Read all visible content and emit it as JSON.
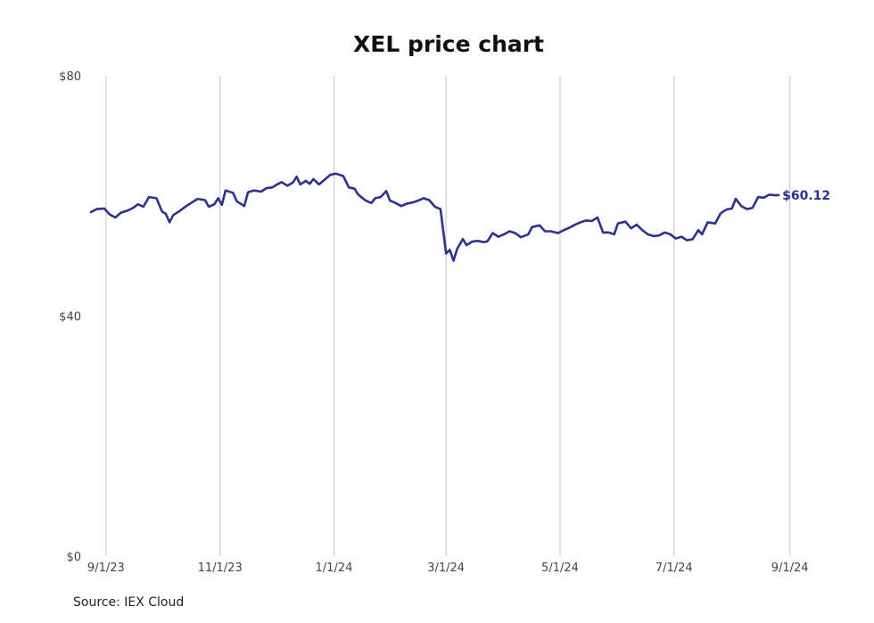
{
  "chart_data": {
    "type": "line",
    "title": "XEL price chart",
    "xlabel": "",
    "ylabel": "",
    "ylim": [
      0,
      80
    ],
    "y_ticks": [
      {
        "value": 0,
        "label": "$0"
      },
      {
        "value": 40,
        "label": "$40"
      },
      {
        "value": 80,
        "label": "$80"
      }
    ],
    "x_ticks": [
      {
        "date": "2023-09-01",
        "label": "9/1/23"
      },
      {
        "date": "2023-11-01",
        "label": "11/1/23"
      },
      {
        "date": "2024-01-01",
        "label": "1/1/24"
      },
      {
        "date": "2024-03-01",
        "label": "3/1/24"
      },
      {
        "date": "2024-05-01",
        "label": "5/1/24"
      },
      {
        "date": "2024-07-01",
        "label": "7/1/24"
      },
      {
        "date": "2024-09-01",
        "label": "9/1/24"
      }
    ],
    "xlim": [
      "2023-08-23",
      "2024-09-15"
    ],
    "grid": "vertical",
    "legend": "none",
    "line_color": "#2e3192",
    "series": [
      {
        "values": [
          [
            "2023-08-24",
            57.3
          ],
          [
            "2023-08-27",
            57.8
          ],
          [
            "2023-08-31",
            57.9
          ],
          [
            "2023-09-03",
            56.9
          ],
          [
            "2023-09-06",
            56.4
          ],
          [
            "2023-09-09",
            57.2
          ],
          [
            "2023-09-13",
            57.6
          ],
          [
            "2023-09-16",
            58.1
          ],
          [
            "2023-09-18",
            58.6
          ],
          [
            "2023-09-21",
            58.2
          ],
          [
            "2023-09-24",
            59.8
          ],
          [
            "2023-09-28",
            59.6
          ],
          [
            "2023-10-01",
            57.4
          ],
          [
            "2023-10-03",
            57.0
          ],
          [
            "2023-10-05",
            55.6
          ],
          [
            "2023-10-07",
            56.8
          ],
          [
            "2023-10-10",
            57.4
          ],
          [
            "2023-10-14",
            58.3
          ],
          [
            "2023-10-17",
            58.9
          ],
          [
            "2023-10-20",
            59.5
          ],
          [
            "2023-10-24",
            59.3
          ],
          [
            "2023-10-26",
            58.2
          ],
          [
            "2023-10-29",
            58.6
          ],
          [
            "2023-10-31",
            59.6
          ],
          [
            "2023-11-02",
            58.5
          ],
          [
            "2023-11-04",
            60.9
          ],
          [
            "2023-11-08",
            60.5
          ],
          [
            "2023-11-10",
            59.1
          ],
          [
            "2023-11-14",
            58.3
          ],
          [
            "2023-11-16",
            60.6
          ],
          [
            "2023-11-19",
            60.9
          ],
          [
            "2023-11-23",
            60.7
          ],
          [
            "2023-11-26",
            61.3
          ],
          [
            "2023-11-29",
            61.4
          ],
          [
            "2023-12-01",
            61.8
          ],
          [
            "2023-12-04",
            62.3
          ],
          [
            "2023-12-07",
            61.7
          ],
          [
            "2023-12-10",
            62.2
          ],
          [
            "2023-12-12",
            63.2
          ],
          [
            "2023-12-14",
            61.9
          ],
          [
            "2023-12-17",
            62.5
          ],
          [
            "2023-12-19",
            62.0
          ],
          [
            "2023-12-21",
            62.8
          ],
          [
            "2023-12-24",
            61.9
          ],
          [
            "2023-12-27",
            62.7
          ],
          [
            "2023-12-30",
            63.5
          ],
          [
            "2024-01-02",
            63.7
          ],
          [
            "2024-01-06",
            63.3
          ],
          [
            "2024-01-09",
            61.4
          ],
          [
            "2024-01-12",
            61.2
          ],
          [
            "2024-01-14",
            60.2
          ],
          [
            "2024-01-18",
            59.2
          ],
          [
            "2024-01-21",
            58.8
          ],
          [
            "2024-01-23",
            59.6
          ],
          [
            "2024-01-26",
            59.8
          ],
          [
            "2024-01-29",
            60.8
          ],
          [
            "2024-01-31",
            59.2
          ],
          [
            "2024-02-03",
            58.8
          ],
          [
            "2024-02-06",
            58.3
          ],
          [
            "2024-02-09",
            58.7
          ],
          [
            "2024-02-12",
            58.9
          ],
          [
            "2024-02-15",
            59.2
          ],
          [
            "2024-02-18",
            59.6
          ],
          [
            "2024-02-21",
            59.3
          ],
          [
            "2024-02-24",
            58.2
          ],
          [
            "2024-02-27",
            57.8
          ],
          [
            "2024-03-01",
            50.4
          ],
          [
            "2024-03-03",
            51.0
          ],
          [
            "2024-03-05",
            49.2
          ],
          [
            "2024-03-07",
            51.2
          ],
          [
            "2024-03-10",
            52.8
          ],
          [
            "2024-03-12",
            51.8
          ],
          [
            "2024-03-15",
            52.4
          ],
          [
            "2024-03-18",
            52.5
          ],
          [
            "2024-03-21",
            52.3
          ],
          [
            "2024-03-23",
            52.4
          ],
          [
            "2024-03-26",
            53.8
          ],
          [
            "2024-03-29",
            53.2
          ],
          [
            "2024-04-01",
            53.6
          ],
          [
            "2024-04-04",
            54.1
          ],
          [
            "2024-04-07",
            53.8
          ],
          [
            "2024-04-10",
            53.1
          ],
          [
            "2024-04-14",
            53.6
          ],
          [
            "2024-04-16",
            54.8
          ],
          [
            "2024-04-20",
            55.1
          ],
          [
            "2024-04-23",
            54.1
          ],
          [
            "2024-04-26",
            54.1
          ],
          [
            "2024-04-30",
            53.8
          ],
          [
            "2024-05-03",
            54.3
          ],
          [
            "2024-05-06",
            54.7
          ],
          [
            "2024-05-09",
            55.2
          ],
          [
            "2024-05-12",
            55.6
          ],
          [
            "2024-05-15",
            55.9
          ],
          [
            "2024-05-18",
            55.8
          ],
          [
            "2024-05-21",
            56.4
          ],
          [
            "2024-05-24",
            53.9
          ],
          [
            "2024-05-27",
            53.9
          ],
          [
            "2024-05-30",
            53.6
          ],
          [
            "2024-06-01",
            55.4
          ],
          [
            "2024-06-05",
            55.7
          ],
          [
            "2024-06-08",
            54.6
          ],
          [
            "2024-06-11",
            55.2
          ],
          [
            "2024-06-14",
            54.3
          ],
          [
            "2024-06-17",
            53.6
          ],
          [
            "2024-06-20",
            53.3
          ],
          [
            "2024-06-23",
            53.4
          ],
          [
            "2024-06-26",
            53.9
          ],
          [
            "2024-06-29",
            53.6
          ],
          [
            "2024-07-02",
            52.9
          ],
          [
            "2024-07-05",
            53.2
          ],
          [
            "2024-07-08",
            52.6
          ],
          [
            "2024-07-11",
            52.8
          ],
          [
            "2024-07-14",
            54.3
          ],
          [
            "2024-07-16",
            53.6
          ],
          [
            "2024-07-19",
            55.6
          ],
          [
            "2024-07-23",
            55.4
          ],
          [
            "2024-07-26",
            57.1
          ],
          [
            "2024-07-29",
            57.7
          ],
          [
            "2024-08-01",
            57.9
          ],
          [
            "2024-08-03",
            59.5
          ],
          [
            "2024-08-06",
            58.3
          ],
          [
            "2024-08-09",
            57.8
          ],
          [
            "2024-08-12",
            58.0
          ],
          [
            "2024-08-15",
            59.8
          ],
          [
            "2024-08-18",
            59.7
          ],
          [
            "2024-08-21",
            60.2
          ],
          [
            "2024-08-24",
            60.1
          ],
          [
            "2024-08-26",
            60.12
          ]
        ]
      }
    ],
    "annotations": [
      {
        "text": "$60.12",
        "date": "2024-08-26",
        "value": 60.12
      }
    ]
  },
  "footer": {
    "source": "Source: IEX Cloud"
  }
}
